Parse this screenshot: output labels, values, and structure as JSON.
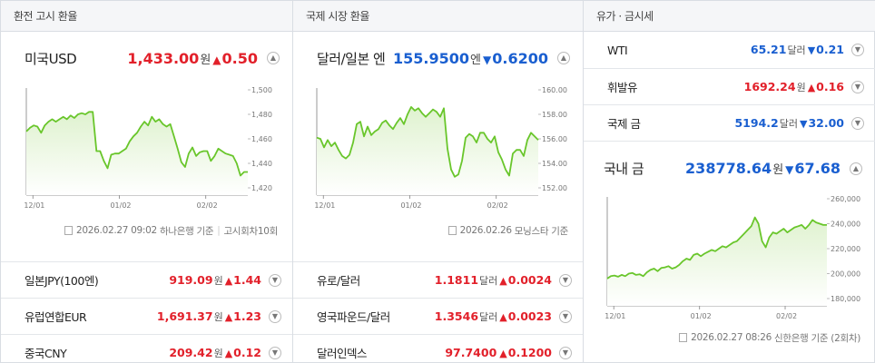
{
  "col1": {
    "header": "환전 고시 환율",
    "main": {
      "name": "미국USD",
      "value": "1,433.00",
      "unit": "원",
      "dir": "up",
      "arrow": "▲",
      "change": "0.50"
    },
    "chart": {
      "type": "line",
      "x_labels": [
        "12/01",
        "01/02",
        "02/02"
      ],
      "y_ticks": [
        "1,500",
        "1,480",
        "1,460",
        "1,440",
        "1,420"
      ],
      "ylim": [
        1420,
        1500
      ],
      "values": [
        1466,
        1469,
        1471,
        1470,
        1465,
        1471,
        1474,
        1476,
        1474,
        1476,
        1478,
        1476,
        1479,
        1477,
        1480,
        1481,
        1480,
        1482,
        1482,
        1450,
        1450,
        1442,
        1436,
        1447,
        1448,
        1448,
        1450,
        1452,
        1458,
        1462,
        1465,
        1470,
        1474,
        1471,
        1478,
        1474,
        1476,
        1472,
        1470,
        1472,
        1462,
        1452,
        1441,
        1437,
        1448,
        1453,
        1446,
        1449,
        1450,
        1450,
        1442,
        1446,
        1452,
        1450,
        1448,
        1447,
        1446,
        1440,
        1430,
        1433,
        1433
      ]
    },
    "source": {
      "date": "2026.02.27 09:02",
      "text": "하나은행 기준",
      "extra": "고시회차10회"
    },
    "list": [
      {
        "name": "일본JPY(100엔)",
        "value": "919.09",
        "unit": "원",
        "dir": "up",
        "arrow": "▲",
        "change": "1.44"
      },
      {
        "name": "유럽연합EUR",
        "value": "1,691.37",
        "unit": "원",
        "dir": "up",
        "arrow": "▲",
        "change": "1.23"
      },
      {
        "name": "중국CNY",
        "value": "209.42",
        "unit": "원",
        "dir": "up",
        "arrow": "▲",
        "change": "0.12"
      }
    ]
  },
  "col2": {
    "header": "국제 시장 환율",
    "main": {
      "name": "달러/일본 엔",
      "value": "155.9500",
      "unit": "엔",
      "dir": "down",
      "arrow": "▼",
      "change": "0.6200"
    },
    "chart": {
      "type": "line",
      "x_labels": [
        "12/01",
        "01/02",
        "02/02"
      ],
      "y_ticks": [
        "160.00",
        "158.00",
        "156.00",
        "154.00",
        "152.00"
      ],
      "ylim": [
        152,
        160
      ],
      "values": [
        156.1,
        156.0,
        155.3,
        155.9,
        155.4,
        155.7,
        155.1,
        154.6,
        154.4,
        154.7,
        155.7,
        157.2,
        157.4,
        156.2,
        157.0,
        156.3,
        156.6,
        156.8,
        157.3,
        157.5,
        157.1,
        156.8,
        157.3,
        157.7,
        157.2,
        158.0,
        158.6,
        158.3,
        158.5,
        158.1,
        157.8,
        158.1,
        158.4,
        158.2,
        157.8,
        158.5,
        155.2,
        153.5,
        152.9,
        153.1,
        154.2,
        156.1,
        156.4,
        156.2,
        155.7,
        156.5,
        156.5,
        156.0,
        155.7,
        156.2,
        154.9,
        154.3,
        153.5,
        153.0,
        154.8,
        155.1,
        155.1,
        154.6,
        155.9,
        156.5,
        156.2,
        155.9
      ]
    },
    "source": {
      "date": "2026.02.26",
      "text": "모닝스타 기준"
    },
    "list": [
      {
        "name": "유로/달러",
        "value": "1.1811",
        "unit": "달러",
        "dir": "up",
        "arrow": "▲",
        "change": "0.0024"
      },
      {
        "name": "영국파운드/달러",
        "value": "1.3546",
        "unit": "달러",
        "dir": "up",
        "arrow": "▲",
        "change": "0.0023"
      },
      {
        "name": "달러인덱스",
        "value": "97.7400",
        "unit": "",
        "dir": "up",
        "arrow": "▲",
        "change": "0.1200"
      }
    ]
  },
  "col3": {
    "header": "유가 · 금시세",
    "list": [
      {
        "name": "WTI",
        "value": "65.21",
        "unit": "달러",
        "dir": "down",
        "arrow": "▼",
        "change": "0.21"
      },
      {
        "name": "휘발유",
        "value": "1692.24",
        "unit": "원",
        "dir": "up",
        "arrow": "▲",
        "change": "0.16"
      },
      {
        "name": "국제 금",
        "value": "5194.2",
        "unit": "달러",
        "dir": "down",
        "arrow": "▼",
        "change": "32.00"
      }
    ],
    "main": {
      "name": "국내 금",
      "value": "238778.64",
      "unit": "원",
      "dir": "down",
      "arrow": "▼",
      "change": "67.68"
    },
    "chart": {
      "type": "line",
      "x_labels": [
        "12/01",
        "01/02",
        "02/02"
      ],
      "y_ticks": [
        "260,000",
        "240,000",
        "220,000",
        "200,000",
        "180,000"
      ],
      "ylim": [
        180000,
        260000
      ],
      "values": [
        196000,
        198000,
        198500,
        197500,
        199000,
        198000,
        200000,
        200500,
        199000,
        199500,
        198000,
        201000,
        203000,
        204000,
        202000,
        204500,
        205000,
        206000,
        204000,
        205000,
        207000,
        210000,
        212000,
        211000,
        215000,
        216000,
        214000,
        216000,
        217500,
        219000,
        218000,
        220000,
        222000,
        221000,
        223000,
        225000,
        226000,
        229000,
        232000,
        235000,
        238000,
        245000,
        240000,
        226000,
        221000,
        229000,
        233000,
        232000,
        234000,
        236000,
        233000,
        235000,
        237000,
        238000,
        239000,
        236000,
        239000,
        243000,
        241000,
        240000,
        239000,
        239000
      ]
    },
    "source": {
      "date": "2026.02.27 08:26",
      "text": "신한은행 기준",
      "extra": "(2회차)"
    }
  },
  "colors": {
    "up": "#e2202a",
    "down": "#1a5fd0",
    "line": "#69c62b",
    "fill_top": "#dff2cf"
  }
}
